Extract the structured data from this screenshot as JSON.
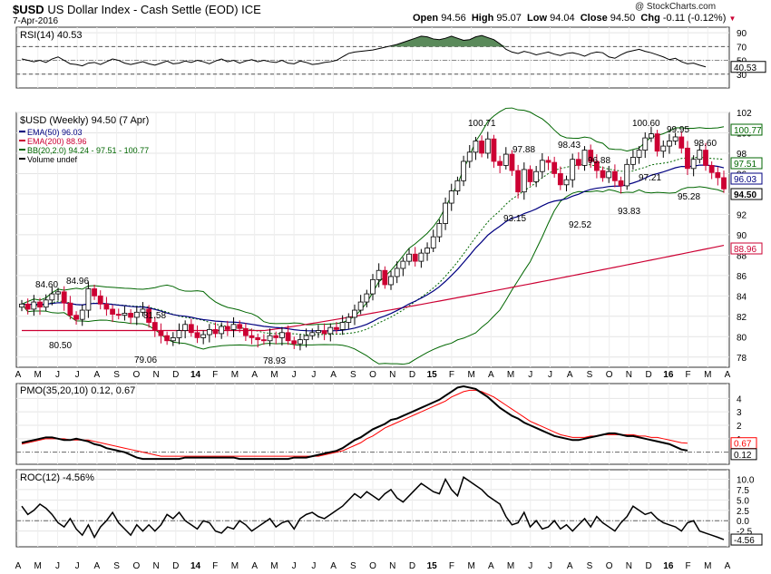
{
  "header": {
    "symbol": "$USD",
    "name": "US Dollar Index - Cash Settle (EOD)",
    "exchange": "ICE",
    "date": "7-Apr-2016",
    "open_label": "Open",
    "open": "94.56",
    "high_label": "High",
    "high": "95.07",
    "low_label": "Low",
    "low": "94.04",
    "close_label": "Close",
    "close": "94.50",
    "chg_label": "Chg",
    "chg": "-0.11 (-0.12%)",
    "watermark": "@ StockCharts.com"
  },
  "colors": {
    "up": "#000000",
    "down": "#cc0033",
    "ema50": "#000080",
    "ema200": "#cc0033",
    "bb": "#006600",
    "rsi_fill": "#5a8a5a",
    "pmo_signal": "#ff0000"
  },
  "chart_data": [
    {
      "type": "line",
      "panel": "RSI",
      "label": "RSI(14) 40.53",
      "ylim": [
        10,
        98
      ],
      "y_ticks": [
        90,
        70,
        50,
        30
      ],
      "overbought": 70,
      "oversold": 30,
      "last_value_label": "40.53",
      "series": [
        {
          "name": "RSI(14)",
          "values": [
            52,
            50,
            48,
            50,
            47,
            52,
            55,
            50,
            45,
            44,
            42,
            46,
            47,
            44,
            48,
            52,
            50,
            46,
            44,
            46,
            48,
            45,
            43,
            46,
            49,
            45,
            46,
            49,
            47,
            50,
            48,
            45,
            49,
            52,
            48,
            50,
            46,
            49,
            51,
            48,
            50,
            48,
            47,
            50,
            46,
            45,
            49,
            47,
            44,
            45,
            47,
            48,
            50,
            55,
            60,
            62,
            63,
            64,
            65,
            67,
            69,
            71,
            73,
            76,
            79,
            82,
            85,
            84,
            81,
            80,
            82,
            85,
            82,
            79,
            80,
            84,
            86,
            83,
            80,
            74,
            66,
            62,
            60,
            63,
            61,
            58,
            60,
            62,
            59,
            57,
            60,
            61,
            59,
            56,
            60,
            62,
            61,
            55,
            53,
            58,
            62,
            64,
            66,
            63,
            61,
            58,
            55,
            51,
            53,
            48,
            45,
            46,
            43,
            40.53
          ]
        }
      ]
    },
    {
      "type": "candlestick",
      "panel": "Price",
      "label": "$USD (Weekly) 94.50 (7 Apr)",
      "ylim": [
        77,
        102
      ],
      "y_ticks": [
        102,
        100,
        98,
        96,
        94,
        92,
        90,
        88,
        86,
        84,
        82,
        80,
        78
      ],
      "legend": [
        "EMA(50) 96.03",
        "EMA(200) 88.96",
        "BB(20,2.0) 94.24 - 97.51 - 100.77",
        "Volume undef"
      ],
      "right_labels": [
        "100.77",
        "97.51",
        "96.03",
        "94.50",
        "88.96"
      ],
      "annotations": [
        "84.60",
        "84.96",
        "81.58",
        "80.50",
        "79.06",
        "78.93",
        "100.71",
        "97.88",
        "98.43",
        "96.88",
        "100.60",
        "99.95",
        "98.60",
        "97.21",
        "93.15",
        "92.52",
        "93.83",
        "95.28"
      ],
      "x_axis_labels": [
        "A",
        "M",
        "J",
        "J",
        "A",
        "S",
        "O",
        "N",
        "D",
        "14",
        "F",
        "M",
        "A",
        "M",
        "J",
        "J",
        "A",
        "S",
        "O",
        "N",
        "D",
        "15",
        "F",
        "M",
        "A",
        "M",
        "J",
        "J",
        "A",
        "S",
        "O",
        "N",
        "D",
        "16",
        "F",
        "M",
        "A"
      ],
      "close": [
        83.2,
        82.7,
        83.4,
        82.9,
        83.6,
        84.2,
        84.4,
        83.3,
        82.1,
        81.7,
        82.6,
        84.7,
        84.0,
        83.2,
        82.7,
        82.2,
        82.1,
        82.3,
        81.9,
        82.4,
        82.7,
        81.4,
        80.6,
        80.1,
        79.6,
        79.9,
        80.6,
        81.2,
        80.4,
        79.9,
        80.2,
        80.7,
        80.3,
        81.0,
        80.7,
        81.2,
        80.8,
        80.1,
        79.9,
        79.7,
        79.6,
        80.1,
        79.9,
        80.4,
        79.6,
        79.3,
        79.7,
        80.1,
        80.4,
        80.6,
        80.3,
        80.9,
        80.7,
        81.4,
        81.9,
        82.6,
        83.4,
        84.2,
        85.6,
        86.5,
        85.1,
        85.9,
        86.7,
        87.4,
        88.1,
        87.4,
        88.2,
        88.7,
        89.8,
        91.1,
        93.1,
        94.3,
        95.3,
        97.2,
        98.1,
        99.2,
        98.0,
        99.4,
        97.2,
        96.8,
        97.9,
        96.3,
        94.2,
        96.4,
        95.2,
        96.2,
        97.3,
        97.1,
        96.0,
        94.9,
        95.4,
        97.4,
        96.8,
        98.3,
        97.2,
        96.3,
        95.6,
        96.2,
        95.3,
        94.8,
        96.9,
        97.6,
        98.3,
        99.5,
        99.9,
        98.2,
        98.7,
        99.2,
        99.6,
        98.5,
        96.5,
        97.4,
        98.3,
        96.8,
        96.1,
        95.6,
        94.5
      ]
    },
    {
      "type": "line",
      "panel": "PMO",
      "label": "PMO(35,20,10) 0.12, 0.67",
      "ylim": [
        -0.9,
        5.1
      ],
      "y_ticks": [
        4,
        3,
        2,
        1
      ],
      "right_labels": [
        "0.67",
        "0.12"
      ],
      "series": [
        {
          "name": "PMO",
          "values": [
            0.7,
            0.8,
            0.9,
            1.0,
            1.1,
            1.1,
            1.0,
            0.9,
            0.9,
            1.0,
            0.9,
            0.8,
            0.6,
            0.5,
            0.3,
            0.2,
            0.1,
            0.0,
            -0.2,
            -0.4,
            -0.5,
            -0.5,
            -0.5,
            -0.5,
            -0.5,
            -0.5,
            -0.5,
            -0.4,
            -0.4,
            -0.4,
            -0.4,
            -0.4,
            -0.4,
            -0.4,
            -0.4,
            -0.4,
            -0.5,
            -0.5,
            -0.5,
            -0.5,
            -0.5,
            -0.5,
            -0.5,
            -0.5,
            -0.5,
            -0.4,
            -0.4,
            -0.4,
            -0.3,
            -0.2,
            -0.1,
            0.0,
            0.1,
            0.3,
            0.6,
            0.9,
            1.1,
            1.4,
            1.7,
            1.9,
            2.1,
            2.4,
            2.5,
            2.7,
            2.9,
            3.1,
            3.3,
            3.5,
            3.7,
            3.9,
            4.2,
            4.5,
            4.8,
            4.9,
            4.8,
            4.7,
            4.4,
            4.1,
            3.7,
            3.3,
            3.0,
            2.7,
            2.5,
            2.2,
            2.0,
            1.8,
            1.6,
            1.4,
            1.2,
            1.1,
            1.0,
            0.9,
            0.9,
            1.0,
            1.1,
            1.2,
            1.3,
            1.4,
            1.4,
            1.3,
            1.2,
            1.2,
            1.1,
            1.0,
            0.9,
            0.8,
            0.7,
            0.6,
            0.4,
            0.2,
            0.12
          ]
        },
        {
          "name": "Signal",
          "values": [
            0.6,
            0.7,
            0.8,
            0.9,
            1.0,
            1.0,
            1.0,
            1.0,
            0.9,
            0.9,
            0.9,
            0.9,
            0.8,
            0.7,
            0.6,
            0.5,
            0.4,
            0.3,
            0.2,
            0.1,
            0.0,
            -0.1,
            -0.2,
            -0.3,
            -0.3,
            -0.3,
            -0.3,
            -0.3,
            -0.3,
            -0.3,
            -0.3,
            -0.3,
            -0.3,
            -0.3,
            -0.3,
            -0.3,
            -0.3,
            -0.3,
            -0.3,
            -0.3,
            -0.3,
            -0.3,
            -0.3,
            -0.3,
            -0.3,
            -0.3,
            -0.3,
            -0.3,
            -0.3,
            -0.3,
            -0.2,
            -0.1,
            0.0,
            0.1,
            0.3,
            0.5,
            0.7,
            1.0,
            1.2,
            1.5,
            1.8,
            2.0,
            2.2,
            2.4,
            2.6,
            2.8,
            3.0,
            3.2,
            3.4,
            3.6,
            3.8,
            4.1,
            4.3,
            4.5,
            4.6,
            4.6,
            4.5,
            4.3,
            4.1,
            3.8,
            3.5,
            3.2,
            2.9,
            2.6,
            2.3,
            2.1,
            1.9,
            1.7,
            1.5,
            1.3,
            1.2,
            1.1,
            1.1,
            1.1,
            1.2,
            1.2,
            1.3,
            1.3,
            1.3,
            1.3,
            1.3,
            1.3,
            1.2,
            1.2,
            1.1,
            1.1,
            1.0,
            0.9,
            0.8,
            0.7,
            0.67
          ]
        }
      ]
    },
    {
      "type": "line",
      "panel": "ROC",
      "label": "ROC(12) -4.56%",
      "ylim": [
        -6.3,
        12.3
      ],
      "y_ticks": [
        10.0,
        7.5,
        5.0,
        2.5,
        0.0,
        -2.5
      ],
      "last_value_label": "-4.56",
      "series": [
        {
          "name": "ROC(12)",
          "values": [
            3.5,
            1.5,
            2.5,
            4.0,
            3.0,
            1.5,
            -0.5,
            -1.5,
            0.5,
            -2.0,
            -3.5,
            -1.0,
            -4.0,
            -1.5,
            0.0,
            2.0,
            -0.5,
            -2.0,
            -3.5,
            -1.0,
            -2.5,
            -1.0,
            -2.5,
            -1.0,
            1.5,
            0.5,
            2.0,
            0.0,
            -1.0,
            -2.0,
            0.0,
            -0.5,
            -2.5,
            -3.0,
            -1.5,
            -2.0,
            0.0,
            -1.0,
            -2.5,
            -1.5,
            -0.5,
            0.5,
            -1.5,
            -0.5,
            0.0,
            -2.0,
            0.5,
            1.5,
            2.0,
            1.0,
            0.5,
            1.5,
            2.5,
            3.5,
            5.0,
            6.5,
            5.5,
            7.0,
            6.0,
            5.0,
            6.5,
            7.5,
            5.5,
            4.5,
            6.0,
            7.5,
            9.0,
            8.0,
            7.0,
            6.5,
            10.0,
            7.5,
            6.0,
            10.5,
            9.5,
            8.5,
            7.5,
            6.0,
            5.0,
            4.0,
            1.0,
            -1.0,
            -0.5,
            2.0,
            -1.5,
            0.0,
            -2.0,
            -1.5,
            0.0,
            -2.0,
            -1.0,
            -2.5,
            -1.0,
            0.5,
            -1.5,
            1.0,
            -0.5,
            -1.5,
            -2.5,
            -0.5,
            1.0,
            3.5,
            2.5,
            1.5,
            2.0,
            0.5,
            -0.5,
            -1.0,
            -1.5,
            -2.5,
            -0.5,
            0.0,
            -2.5,
            -3.0,
            -3.5,
            -4.0,
            -4.56
          ]
        }
      ]
    }
  ]
}
